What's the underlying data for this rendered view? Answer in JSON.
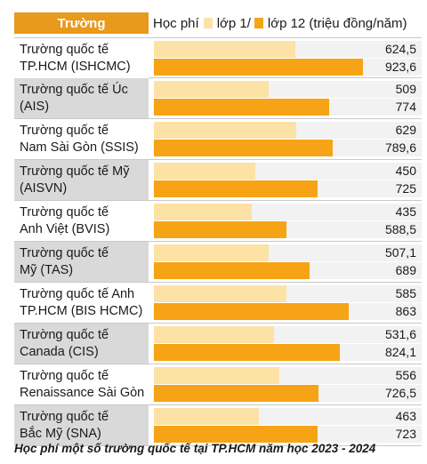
{
  "header": {
    "school_column": "Trường",
    "legend_prefix": "Học phí",
    "legend_grade1": "lớp 1/",
    "legend_grade12": "lớp 12 (triệu đồng/năm)"
  },
  "colors": {
    "header_bg": "#e79a1c",
    "grade1_bar": "#fde2a6",
    "grade12_bar": "#f6a415",
    "label_shade": "#d9d9d9"
  },
  "chart_data": {
    "type": "bar",
    "orientation": "horizontal",
    "categories": [
      [
        "Trường quốc tế",
        "TP.HCM (ISHCMC)"
      ],
      [
        "Trường quốc tế Úc",
        "(AIS)"
      ],
      [
        "Trường quốc tế",
        "Nam Sài Gòn (SSIS)"
      ],
      [
        "Trường quốc tế Mỹ",
        "(AISVN)"
      ],
      [
        "Trường quốc tế",
        "Anh Việt (BVIS)"
      ],
      [
        "Trường quốc tế",
        "Mỹ (TAS)"
      ],
      [
        "Trường quốc tế Anh",
        "TP.HCM (BIS HCMC)"
      ],
      [
        "Trường quốc tế",
        "Canada (CIS)"
      ],
      [
        "Trường quốc tế",
        "Renaissance Sài Gòn"
      ],
      [
        "Trường quốc tế",
        "Bắc Mỹ (SNA)"
      ]
    ],
    "series": [
      {
        "name": "lớp 1",
        "values": [
          624.5,
          509,
          629,
          450,
          435,
          507.1,
          585,
          531.6,
          556,
          463
        ],
        "labels": [
          "624,5",
          "509",
          "629",
          "450",
          "435",
          "507,1",
          "585",
          "531,6",
          "556",
          "463"
        ]
      },
      {
        "name": "lớp 12",
        "values": [
          923.6,
          774,
          789.6,
          725,
          588.5,
          689,
          863,
          824.1,
          726.5,
          723
        ],
        "labels": [
          "923,6",
          "774",
          "789,6",
          "725",
          "588,5",
          "689",
          "863",
          "824,1",
          "726,5",
          "723"
        ]
      }
    ],
    "unit": "triệu đồng/năm",
    "xlim": [
      0,
      1000
    ]
  },
  "caption": "Học phí một số trường quốc tế tại TP.HCM năm học 2023 - 2024"
}
